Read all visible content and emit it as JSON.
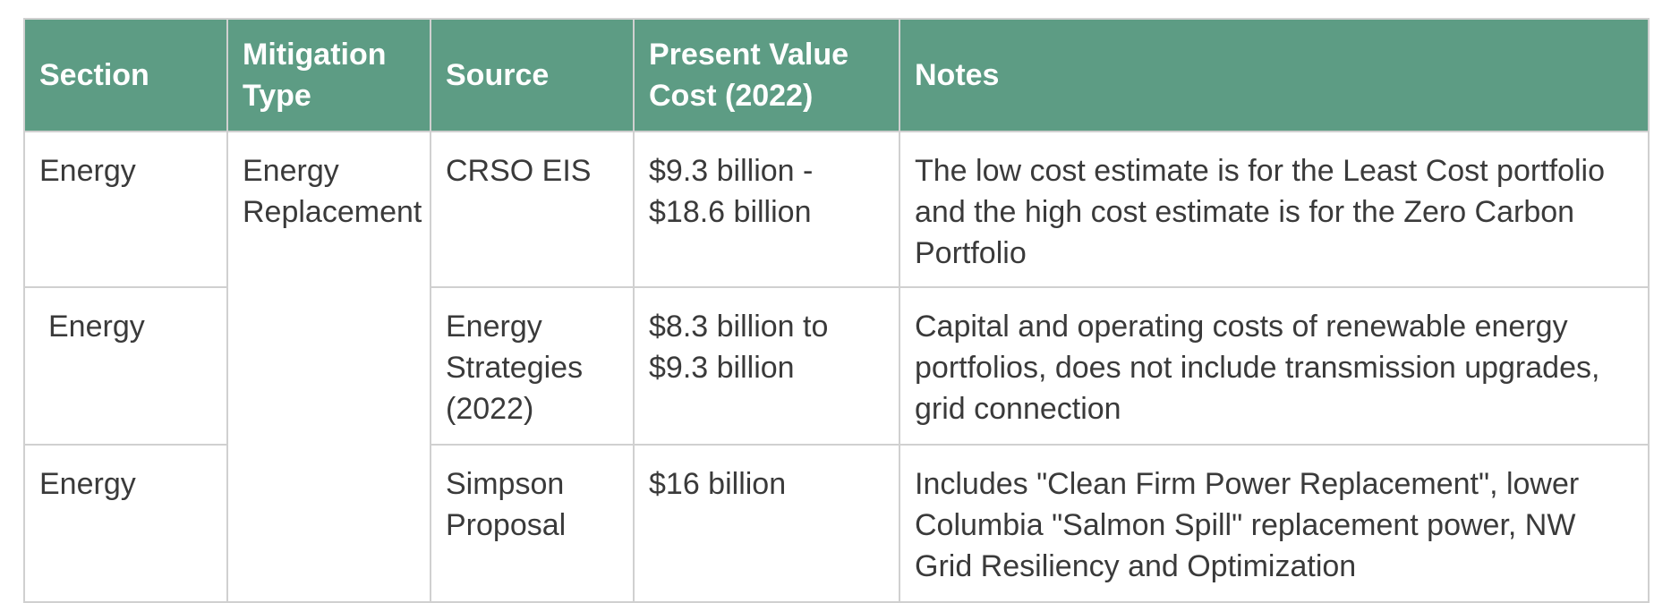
{
  "table": {
    "headers": [
      "Section",
      "Mitigation Type",
      "Source",
      "Present Value Cost (2022)",
      "Notes"
    ],
    "rows": [
      {
        "section": "Energy",
        "mitigation_type": "Energy Replacement",
        "source": "CRSO EIS",
        "cost": "$9.3 billion - $18.6 billion",
        "notes": "The low cost estimate is for the Least Cost portfolio and the high cost estimate is for the Zero Carbon Portfolio"
      },
      {
        "section": "Energy",
        "source": "Energy Strategies (2022)",
        "cost": "$8.3 billion to $9.3 billion",
        "notes": "Capital and operating costs of renewable energy portfolios, does not include transmission upgrades, grid connection"
      },
      {
        "section": "Energy",
        "source": "Simpson Proposal",
        "cost": "$16 billion",
        "notes": "Includes \"Clean Firm Power Replacement\", lower Columbia \"Salmon Spill\" replacement power, NW Grid Resiliency and Optimization"
      }
    ]
  }
}
